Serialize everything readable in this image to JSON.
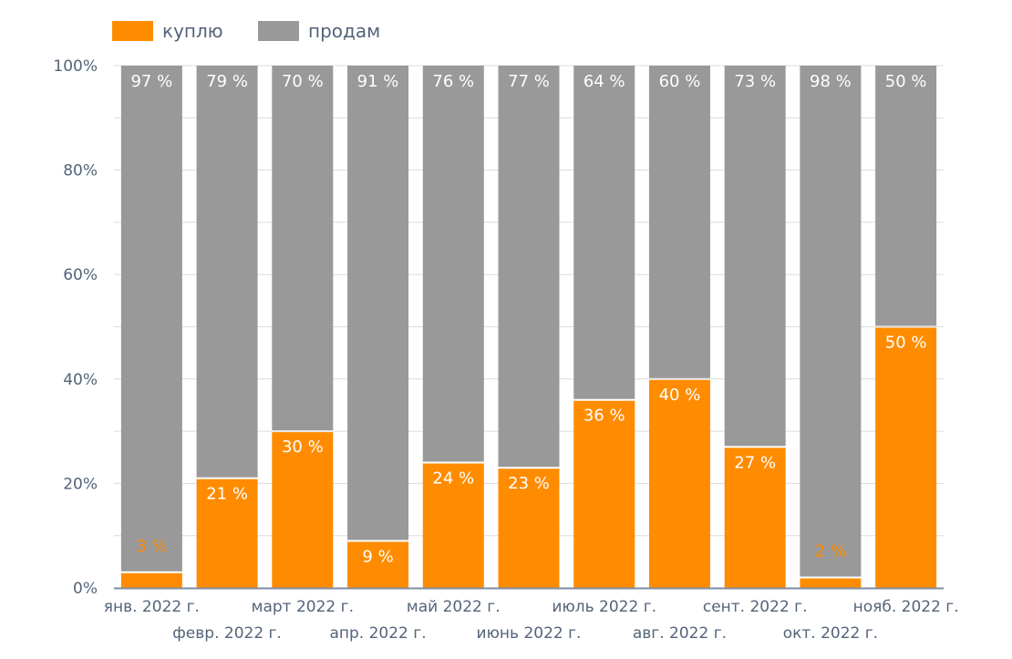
{
  "chart_data": {
    "type": "bar",
    "stacked": true,
    "normalized": true,
    "title": "",
    "xlabel": "",
    "ylabel": "",
    "ylim": [
      0,
      100
    ],
    "yticks": [
      "0%",
      "20%",
      "40%",
      "60%",
      "80%",
      "100%"
    ],
    "grid": true,
    "legend_position": "top-left",
    "categories": [
      "янв. 2022 г.",
      "февр. 2022 г.",
      "март 2022 г.",
      "апр. 2022 г.",
      "май 2022 г.",
      "июнь 2022 г.",
      "июль 2022 г.",
      "авг. 2022 г.",
      "сент. 2022 г.",
      "окт. 2022 г.",
      "нояб. 2022 г."
    ],
    "series": [
      {
        "name": "куплю",
        "color": "#ff8c00",
        "values": [
          3,
          21,
          30,
          9,
          24,
          23,
          36,
          40,
          27,
          2,
          50
        ],
        "labels": [
          "3 %",
          "21 %",
          "30 %",
          "9 %",
          "24 %",
          "23 %",
          "36 %",
          "40 %",
          "27 %",
          "2 %",
          "50 %"
        ]
      },
      {
        "name": "продам",
        "color": "#999999",
        "values": [
          97,
          79,
          70,
          91,
          76,
          77,
          64,
          60,
          73,
          98,
          50
        ],
        "labels": [
          "97 %",
          "79 %",
          "70 %",
          "91 %",
          "76 %",
          "77 %",
          "64 %",
          "60 %",
          "73 %",
          "98 %",
          "50 %"
        ]
      }
    ]
  }
}
